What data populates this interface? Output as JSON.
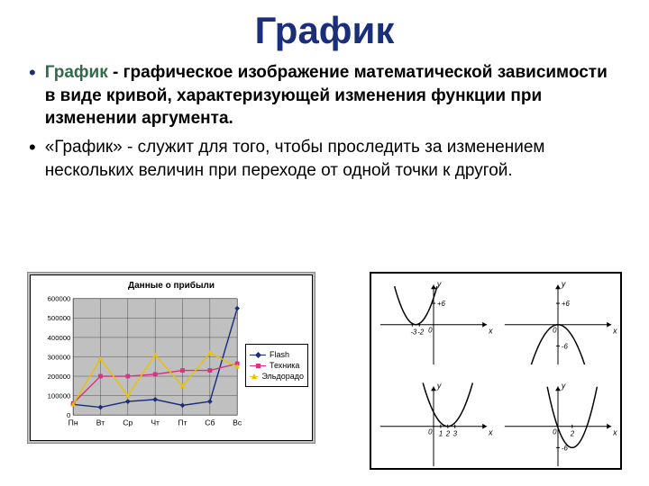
{
  "title": "График",
  "bullets": [
    {
      "term": "График",
      "rest_bold": " - графическое изображение математической зависимости в виде кривой, характеризующей изменения функции при изменении аргумента.",
      "rest": "",
      "has_term": true
    },
    {
      "term": "",
      "rest_bold": "",
      "rest": "«График» - служит для того, чтобы проследить за изменением нескольких величин при переходе от одной точки к другой.",
      "has_term": false
    }
  ],
  "profit_chart": {
    "title": "Данные о прибыли",
    "categories": [
      "Пн",
      "Вт",
      "Ср",
      "Чт",
      "Пт",
      "Сб",
      "Вс"
    ],
    "ylim": [
      0,
      600000
    ],
    "ytick_step": 100000,
    "grid_color": "#bfbfbf",
    "background_color": "#c0c0c0",
    "series": [
      {
        "name": "Flash",
        "color": "#1a2e7a",
        "marker": "diamond",
        "values": [
          55000,
          40000,
          70000,
          80000,
          50000,
          70000,
          550000
        ]
      },
      {
        "name": "Техника",
        "color": "#d63384",
        "marker": "square",
        "values": [
          60000,
          200000,
          200000,
          210000,
          230000,
          230000,
          265000
        ]
      },
      {
        "name": "Эльдорадо",
        "color": "#e6c200",
        "marker": "triangle",
        "values": [
          55000,
          290000,
          100000,
          310000,
          150000,
          320000,
          250000
        ]
      }
    ],
    "legend_labels": [
      "Flash",
      "Техника",
      "Эльдорадо"
    ]
  },
  "math_panel": {
    "cells": [
      {
        "type": "parabola-up",
        "y_tick": "+6",
        "x_ticks": [
          "-3",
          "-2"
        ],
        "curve_shift_x": -2.5,
        "curve_scale": 1.2
      },
      {
        "type": "parabola-down",
        "y_tick": "+6",
        "curve_shift_x": 0,
        "curve_scale": -0.8,
        "y_neg_tick": "-6"
      },
      {
        "type": "parabola-up",
        "x_ticks": [
          "1",
          "2",
          "3"
        ],
        "curve_shift_x": 2,
        "curve_scale": 1.0
      },
      {
        "type": "parabola-up",
        "y_tick": "-6",
        "x_ticks": [
          "2"
        ],
        "curve_shift_x": 2,
        "curve_scale": 1.4,
        "y_offset": -6
      }
    ],
    "axis_label_x": "x",
    "axis_label_y": "y"
  }
}
